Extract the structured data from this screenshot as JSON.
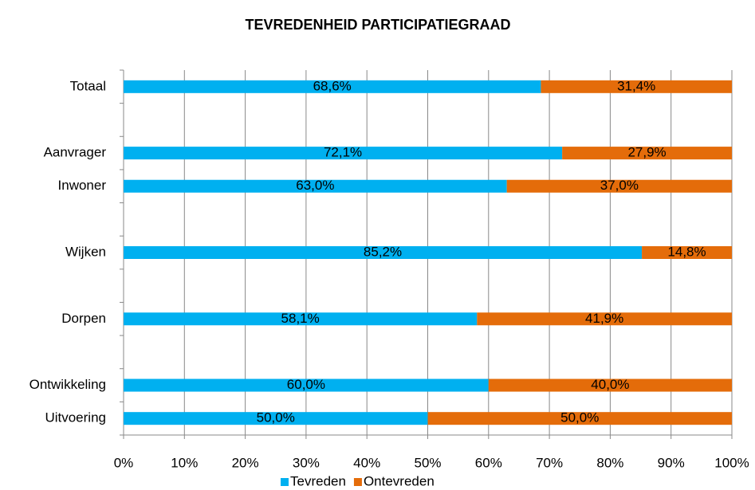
{
  "chart_data": {
    "type": "stacked_bar_horizontal",
    "title": "TEVREDENHEID PARTICIPATIEGRAAD",
    "categories": [
      "Totaal",
      null,
      "Aanvrager",
      "Inwoner",
      null,
      "Wijken",
      null,
      "Dorpen",
      null,
      "Ontwikkeling",
      "Uitvoering"
    ],
    "series": [
      {
        "name": "Tevreden",
        "color": "#00b0f0",
        "values": [
          68.6,
          null,
          72.1,
          63.0,
          null,
          85.2,
          null,
          58.1,
          null,
          60.0,
          50.0
        ],
        "value_labels": [
          "68,6%",
          null,
          "72,1%",
          "63,0%",
          null,
          "85,2%",
          null,
          "58,1%",
          null,
          "60,0%",
          "50,0%"
        ]
      },
      {
        "name": "Ontevreden",
        "color": "#e46c0a",
        "values": [
          31.4,
          null,
          27.9,
          37.0,
          null,
          14.8,
          null,
          41.9,
          null,
          40.0,
          50.0
        ],
        "value_labels": [
          "31,4%",
          null,
          "27,9%",
          "37,0%",
          null,
          "14,8%",
          null,
          "41,9%",
          null,
          "40,0%",
          "50,0%"
        ]
      }
    ],
    "xlim": [
      0,
      100
    ],
    "xticks": [
      {
        "value": 0,
        "label": "0%"
      },
      {
        "value": 10,
        "label": "10%"
      },
      {
        "value": 20,
        "label": "20%"
      },
      {
        "value": 30,
        "label": "30%"
      },
      {
        "value": 40,
        "label": "40%"
      },
      {
        "value": 50,
        "label": "50%"
      },
      {
        "value": 60,
        "label": "60%"
      },
      {
        "value": 70,
        "label": "70%"
      },
      {
        "value": 80,
        "label": "80%"
      },
      {
        "value": 90,
        "label": "90%"
      },
      {
        "value": 100,
        "label": "100%"
      }
    ],
    "grid": true,
    "legend": "bottom"
  }
}
